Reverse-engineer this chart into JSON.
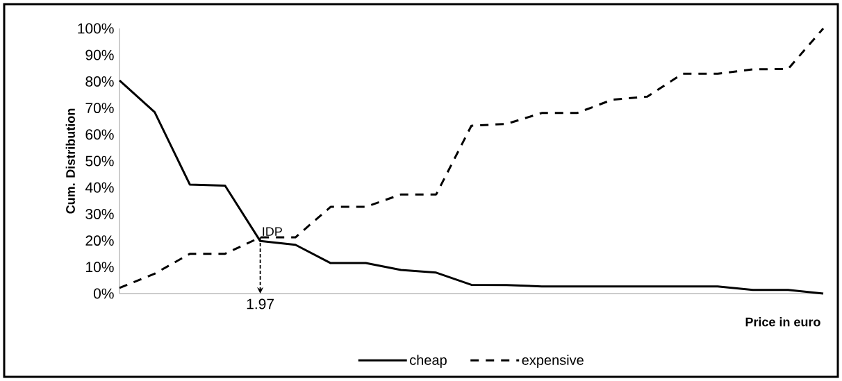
{
  "chart_data": {
    "type": "line",
    "xlabel": "Price in euro",
    "ylabel": "Cum. Distribution",
    "categories": [
      null,
      null,
      null,
      null,
      "1.97",
      null,
      null,
      null,
      null,
      null,
      null,
      null,
      null,
      null,
      null,
      null,
      null,
      null,
      null,
      null,
      null
    ],
    "series": [
      {
        "name": "cheap",
        "color": "#000000",
        "line_style": "solid",
        "values": [
          80.4,
          68.4,
          41.1,
          40.7,
          19.8,
          18.4,
          11.5,
          11.5,
          8.9,
          7.9,
          3.3,
          3.2,
          2.7,
          2.7,
          2.7,
          2.7,
          2.7,
          2.7,
          1.4,
          1.4,
          0
        ]
      },
      {
        "name": "expensive",
        "color": "#000000",
        "line_style": "dashed",
        "values": [
          2.1,
          7.5,
          15,
          15,
          21.2,
          21.2,
          32.7,
          32.7,
          37.4,
          37.4,
          63.3,
          64.0,
          68.1,
          68.1,
          73.1,
          74.3,
          82.9,
          82.9,
          84.6,
          84.7,
          100
        ]
      }
    ],
    "ylim": [
      0,
      100
    ],
    "yticks": [
      {
        "value": 0,
        "label": "0%"
      },
      {
        "value": 10,
        "label": "10%"
      },
      {
        "value": 20,
        "label": "20%"
      },
      {
        "value": 30,
        "label": "30%"
      },
      {
        "value": 40,
        "label": "40%"
      },
      {
        "value": 50,
        "label": "50%"
      },
      {
        "value": 60,
        "label": "60%"
      },
      {
        "value": 70,
        "label": "70%"
      },
      {
        "value": 80,
        "label": "80%"
      },
      {
        "value": 90,
        "label": "90%"
      },
      {
        "value": 100,
        "label": "100%"
      }
    ],
    "annotations": [
      {
        "text": "IDP",
        "x": "1.97",
        "y": 21.2
      }
    ],
    "legend": "bottom"
  }
}
